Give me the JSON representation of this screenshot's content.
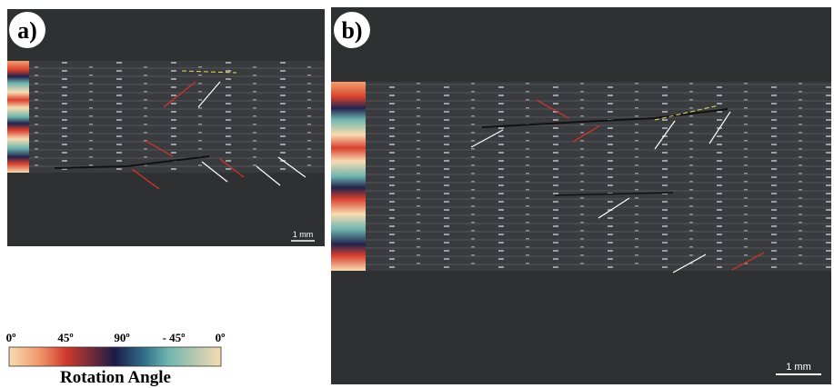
{
  "panels": [
    {
      "label": "a)",
      "scale_bar": "1 mm"
    },
    {
      "label": "b)",
      "scale_bar": "1 mm"
    }
  ],
  "colorbar": {
    "ticks": [
      "0º",
      "45º",
      "90º",
      "- 45º",
      "0º"
    ],
    "title": "Rotation Angle"
  }
}
